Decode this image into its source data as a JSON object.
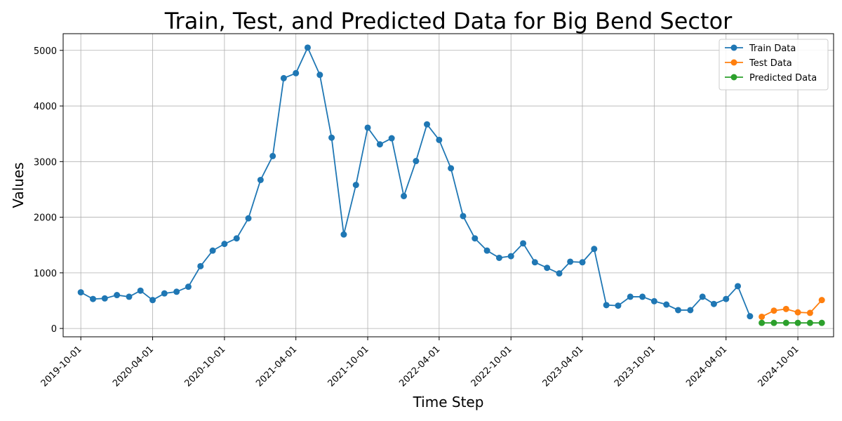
{
  "chart_data": {
    "type": "line",
    "title": "Train, Test, and Predicted Data for Big Bend Sector",
    "xlabel": "Time Step",
    "ylabel": "Values",
    "ylim": [
      -150,
      5300
    ],
    "xlim": [
      "2019-08-17",
      "2024-12-31"
    ],
    "grid": true,
    "legend_position": "top-right",
    "x_ticks": [
      "2019-10-01",
      "2020-04-01",
      "2020-10-01",
      "2021-04-01",
      "2021-10-01",
      "2022-04-01",
      "2022-10-01",
      "2023-04-01",
      "2023-10-01",
      "2024-04-01",
      "2024-10-01"
    ],
    "y_ticks": [
      0,
      1000,
      2000,
      3000,
      4000,
      5000
    ],
    "series": [
      {
        "name": "Train Data",
        "color": "#1f77b4",
        "x": [
          "2019-10-01",
          "2019-11-01",
          "2019-12-01",
          "2020-01-01",
          "2020-02-01",
          "2020-03-01",
          "2020-04-01",
          "2020-05-01",
          "2020-06-01",
          "2020-07-01",
          "2020-08-01",
          "2020-09-01",
          "2020-10-01",
          "2020-11-01",
          "2020-12-01",
          "2021-01-01",
          "2021-02-01",
          "2021-03-01",
          "2021-04-01",
          "2021-05-01",
          "2021-06-01",
          "2021-07-01",
          "2021-08-01",
          "2021-09-01",
          "2021-10-01",
          "2021-11-01",
          "2021-12-01",
          "2022-01-01",
          "2022-02-01",
          "2022-03-01",
          "2022-04-01",
          "2022-05-01",
          "2022-06-01",
          "2022-07-01",
          "2022-08-01",
          "2022-09-01",
          "2022-10-01",
          "2022-11-01",
          "2022-12-01",
          "2023-01-01",
          "2023-02-01",
          "2023-03-01",
          "2023-04-01",
          "2023-05-01",
          "2023-06-01",
          "2023-07-01",
          "2023-08-01",
          "2023-09-01",
          "2023-10-01",
          "2023-11-01",
          "2023-12-01",
          "2024-01-01",
          "2024-02-01",
          "2024-03-01",
          "2024-04-01",
          "2024-05-01",
          "2024-06-01"
        ],
        "values": [
          650,
          530,
          540,
          600,
          570,
          680,
          510,
          630,
          660,
          750,
          1120,
          1400,
          1520,
          1620,
          1980,
          2670,
          3100,
          4500,
          4590,
          5050,
          4560,
          3430,
          1690,
          2580,
          3610,
          3310,
          3420,
          2380,
          3010,
          3670,
          3390,
          2880,
          2020,
          1620,
          1400,
          1270,
          1300,
          1530,
          1190,
          1090,
          990,
          1200,
          1190,
          1430,
          420,
          410,
          570,
          570,
          490,
          430,
          330,
          330,
          570,
          440,
          530,
          760,
          220
        ]
      },
      {
        "name": "Test Data",
        "color": "#ff7f0e",
        "x": [
          "2024-07-01",
          "2024-08-01",
          "2024-09-01",
          "2024-10-01",
          "2024-11-01",
          "2024-12-01"
        ],
        "values": [
          210,
          320,
          350,
          290,
          280,
          510
        ]
      },
      {
        "name": "Predicted Data",
        "color": "#2ca02c",
        "x": [
          "2024-07-01",
          "2024-08-01",
          "2024-09-01",
          "2024-10-01",
          "2024-11-01",
          "2024-12-01"
        ],
        "values": [
          100,
          100,
          100,
          100,
          100,
          100
        ]
      }
    ]
  }
}
